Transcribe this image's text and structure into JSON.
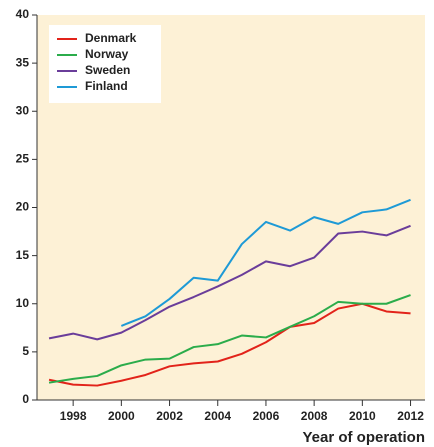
{
  "chart_data": {
    "type": "line",
    "x": [
      1997,
      1998,
      1999,
      2000,
      2001,
      2002,
      2003,
      2004,
      2005,
      2006,
      2007,
      2008,
      2009,
      2010,
      2011,
      2012
    ],
    "series": [
      {
        "name": "Denmark",
        "color": "#e2231a",
        "values": [
          2.1,
          1.6,
          1.5,
          2.0,
          2.6,
          3.5,
          3.8,
          4.0,
          4.8,
          6.0,
          7.6,
          8.0,
          9.5,
          10.0,
          9.2,
          9.0
        ]
      },
      {
        "name": "Norway",
        "color": "#2bac4b",
        "values": [
          1.8,
          2.2,
          2.5,
          3.6,
          4.2,
          4.3,
          5.5,
          5.8,
          6.7,
          6.5,
          7.6,
          8.7,
          10.2,
          10.0,
          10.0,
          10.9
        ]
      },
      {
        "name": "Sweden",
        "color": "#6a3d9a",
        "values": [
          6.4,
          6.9,
          6.3,
          7.0,
          8.3,
          9.7,
          10.7,
          11.8,
          13.0,
          14.4,
          13.9,
          14.8,
          17.3,
          17.5,
          17.1,
          18.1
        ]
      },
      {
        "name": "Finland",
        "color": "#1e9ad6",
        "values": [
          null,
          null,
          null,
          7.7,
          8.7,
          10.5,
          12.7,
          12.4,
          16.2,
          18.5,
          17.6,
          19.0,
          18.3,
          19.5,
          19.8,
          20.8
        ]
      }
    ],
    "x_label": "Year of operation",
    "xlim": [
      1996.5,
      2012.6
    ],
    "xticks": [
      1998,
      2000,
      2002,
      2004,
      2006,
      2008,
      2010,
      2012
    ],
    "ylim": [
      0,
      40
    ],
    "yticks": [
      0,
      5,
      10,
      15,
      20,
      25,
      30,
      35,
      40
    ],
    "legend": "upper left",
    "background": "#fdf1d6"
  }
}
